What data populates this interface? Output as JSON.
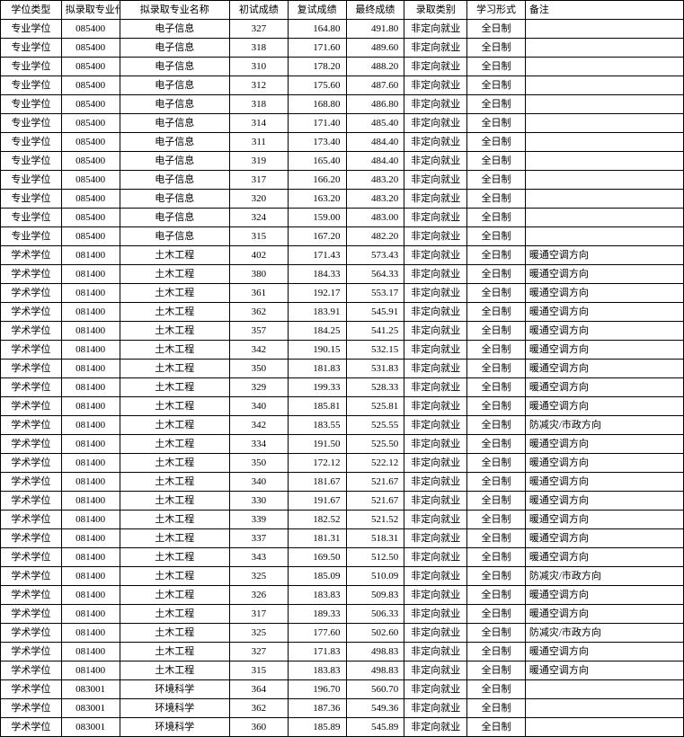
{
  "headers": [
    "学位类型",
    "拟录取专业代码",
    "拟录取专业名称",
    "初试成绩",
    "复试成绩",
    "最终成绩",
    "录取类别",
    "学习形式",
    "备注"
  ],
  "rows": [
    [
      "专业学位",
      "085400",
      "电子信息",
      "327",
      "164.80",
      "491.80",
      "非定向就业",
      "全日制",
      ""
    ],
    [
      "专业学位",
      "085400",
      "电子信息",
      "318",
      "171.60",
      "489.60",
      "非定向就业",
      "全日制",
      ""
    ],
    [
      "专业学位",
      "085400",
      "电子信息",
      "310",
      "178.20",
      "488.20",
      "非定向就业",
      "全日制",
      ""
    ],
    [
      "专业学位",
      "085400",
      "电子信息",
      "312",
      "175.60",
      "487.60",
      "非定向就业",
      "全日制",
      ""
    ],
    [
      "专业学位",
      "085400",
      "电子信息",
      "318",
      "168.80",
      "486.80",
      "非定向就业",
      "全日制",
      ""
    ],
    [
      "专业学位",
      "085400",
      "电子信息",
      "314",
      "171.40",
      "485.40",
      "非定向就业",
      "全日制",
      ""
    ],
    [
      "专业学位",
      "085400",
      "电子信息",
      "311",
      "173.40",
      "484.40",
      "非定向就业",
      "全日制",
      ""
    ],
    [
      "专业学位",
      "085400",
      "电子信息",
      "319",
      "165.40",
      "484.40",
      "非定向就业",
      "全日制",
      ""
    ],
    [
      "专业学位",
      "085400",
      "电子信息",
      "317",
      "166.20",
      "483.20",
      "非定向就业",
      "全日制",
      ""
    ],
    [
      "专业学位",
      "085400",
      "电子信息",
      "320",
      "163.20",
      "483.20",
      "非定向就业",
      "全日制",
      ""
    ],
    [
      "专业学位",
      "085400",
      "电子信息",
      "324",
      "159.00",
      "483.00",
      "非定向就业",
      "全日制",
      ""
    ],
    [
      "专业学位",
      "085400",
      "电子信息",
      "315",
      "167.20",
      "482.20",
      "非定向就业",
      "全日制",
      ""
    ],
    [
      "学术学位",
      "081400",
      "土木工程",
      "402",
      "171.43",
      "573.43",
      "非定向就业",
      "全日制",
      "暖通空调方向"
    ],
    [
      "学术学位",
      "081400",
      "土木工程",
      "380",
      "184.33",
      "564.33",
      "非定向就业",
      "全日制",
      "暖通空调方向"
    ],
    [
      "学术学位",
      "081400",
      "土木工程",
      "361",
      "192.17",
      "553.17",
      "非定向就业",
      "全日制",
      "暖通空调方向"
    ],
    [
      "学术学位",
      "081400",
      "土木工程",
      "362",
      "183.91",
      "545.91",
      "非定向就业",
      "全日制",
      "暖通空调方向"
    ],
    [
      "学术学位",
      "081400",
      "土木工程",
      "357",
      "184.25",
      "541.25",
      "非定向就业",
      "全日制",
      "暖通空调方向"
    ],
    [
      "学术学位",
      "081400",
      "土木工程",
      "342",
      "190.15",
      "532.15",
      "非定向就业",
      "全日制",
      "暖通空调方向"
    ],
    [
      "学术学位",
      "081400",
      "土木工程",
      "350",
      "181.83",
      "531.83",
      "非定向就业",
      "全日制",
      "暖通空调方向"
    ],
    [
      "学术学位",
      "081400",
      "土木工程",
      "329",
      "199.33",
      "528.33",
      "非定向就业",
      "全日制",
      "暖通空调方向"
    ],
    [
      "学术学位",
      "081400",
      "土木工程",
      "340",
      "185.81",
      "525.81",
      "非定向就业",
      "全日制",
      "暖通空调方向"
    ],
    [
      "学术学位",
      "081400",
      "土木工程",
      "342",
      "183.55",
      "525.55",
      "非定向就业",
      "全日制",
      "防减灾/市政方向"
    ],
    [
      "学术学位",
      "081400",
      "土木工程",
      "334",
      "191.50",
      "525.50",
      "非定向就业",
      "全日制",
      "暖通空调方向"
    ],
    [
      "学术学位",
      "081400",
      "土木工程",
      "350",
      "172.12",
      "522.12",
      "非定向就业",
      "全日制",
      "暖通空调方向"
    ],
    [
      "学术学位",
      "081400",
      "土木工程",
      "340",
      "181.67",
      "521.67",
      "非定向就业",
      "全日制",
      "暖通空调方向"
    ],
    [
      "学术学位",
      "081400",
      "土木工程",
      "330",
      "191.67",
      "521.67",
      "非定向就业",
      "全日制",
      "暖通空调方向"
    ],
    [
      "学术学位",
      "081400",
      "土木工程",
      "339",
      "182.52",
      "521.52",
      "非定向就业",
      "全日制",
      "暖通空调方向"
    ],
    [
      "学术学位",
      "081400",
      "土木工程",
      "337",
      "181.31",
      "518.31",
      "非定向就业",
      "全日制",
      "暖通空调方向"
    ],
    [
      "学术学位",
      "081400",
      "土木工程",
      "343",
      "169.50",
      "512.50",
      "非定向就业",
      "全日制",
      "暖通空调方向"
    ],
    [
      "学术学位",
      "081400",
      "土木工程",
      "325",
      "185.09",
      "510.09",
      "非定向就业",
      "全日制",
      "防减灾/市政方向"
    ],
    [
      "学术学位",
      "081400",
      "土木工程",
      "326",
      "183.83",
      "509.83",
      "非定向就业",
      "全日制",
      "暖通空调方向"
    ],
    [
      "学术学位",
      "081400",
      "土木工程",
      "317",
      "189.33",
      "506.33",
      "非定向就业",
      "全日制",
      "暖通空调方向"
    ],
    [
      "学术学位",
      "081400",
      "土木工程",
      "325",
      "177.60",
      "502.60",
      "非定向就业",
      "全日制",
      "防减灾/市政方向"
    ],
    [
      "学术学位",
      "081400",
      "土木工程",
      "327",
      "171.83",
      "498.83",
      "非定向就业",
      "全日制",
      "暖通空调方向"
    ],
    [
      "学术学位",
      "081400",
      "土木工程",
      "315",
      "183.83",
      "498.83",
      "非定向就业",
      "全日制",
      "暖通空调方向"
    ],
    [
      "学术学位",
      "083001",
      "环境科学",
      "364",
      "196.70",
      "560.70",
      "非定向就业",
      "全日制",
      ""
    ],
    [
      "学术学位",
      "083001",
      "环境科学",
      "362",
      "187.36",
      "549.36",
      "非定向就业",
      "全日制",
      ""
    ],
    [
      "学术学位",
      "083001",
      "环境科学",
      "360",
      "185.89",
      "545.89",
      "非定向就业",
      "全日制",
      ""
    ]
  ],
  "colClasses": [
    "col-0",
    "col-1",
    "col-2",
    "col-3",
    "col-4",
    "col-5",
    "col-6",
    "col-7",
    "col-8"
  ],
  "numericCols": [
    3,
    4,
    5
  ],
  "rightAlignCols": [
    4,
    5
  ],
  "leftAlignCols": [
    8
  ]
}
